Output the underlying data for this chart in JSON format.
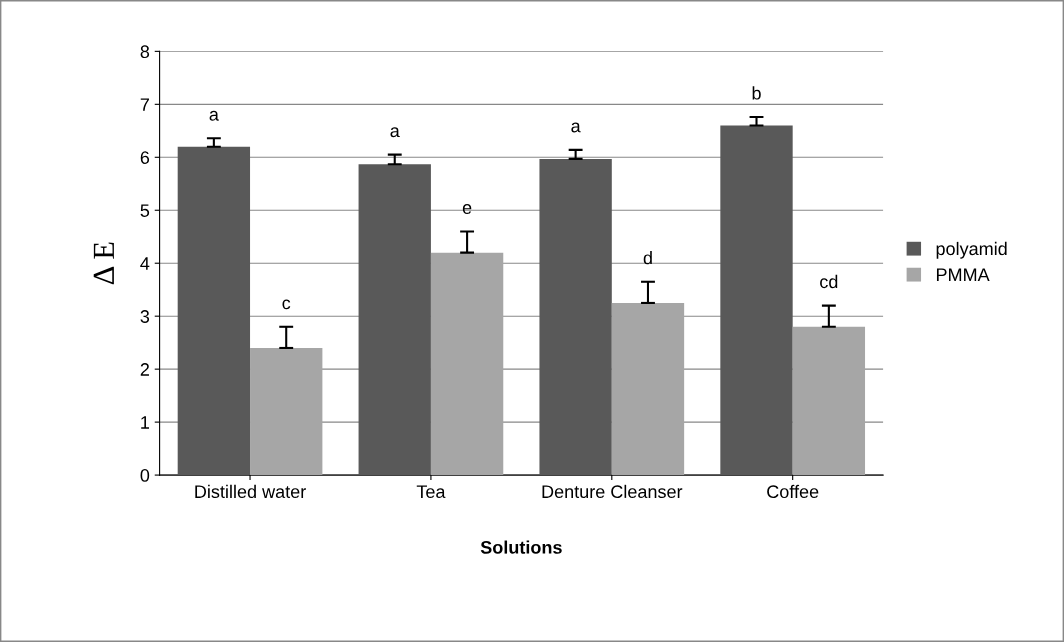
{
  "chart_data": {
    "type": "bar",
    "xlabel": "Solutions",
    "ylabel": "Δ E",
    "categories": [
      "Distilled water",
      "Tea",
      "Denture Cleanser",
      "Coffee"
    ],
    "series": [
      {
        "name": "polyamid",
        "color": "#595959",
        "values": [
          6.2,
          5.87,
          5.97,
          6.6
        ],
        "errors": [
          [
            6.2,
            6.36
          ],
          [
            5.87,
            6.05
          ],
          [
            5.97,
            6.14
          ],
          [
            6.6,
            6.76
          ]
        ],
        "value_labels": [
          "a",
          "a",
          "a",
          "b"
        ]
      },
      {
        "name": "PMMA",
        "color": "#a6a6a6",
        "values": [
          2.4,
          4.2,
          3.25,
          2.8
        ],
        "errors": [
          [
            2.4,
            2.8
          ],
          [
            4.2,
            4.6
          ],
          [
            3.25,
            3.65
          ],
          [
            2.8,
            3.2
          ]
        ],
        "value_labels": [
          "c",
          "e",
          "d",
          "cd"
        ]
      }
    ],
    "ylim": [
      0,
      8
    ],
    "yticks": [
      0,
      1,
      2,
      3,
      4,
      5,
      6,
      7,
      8
    ],
    "grid": "y",
    "legend": "right"
  }
}
